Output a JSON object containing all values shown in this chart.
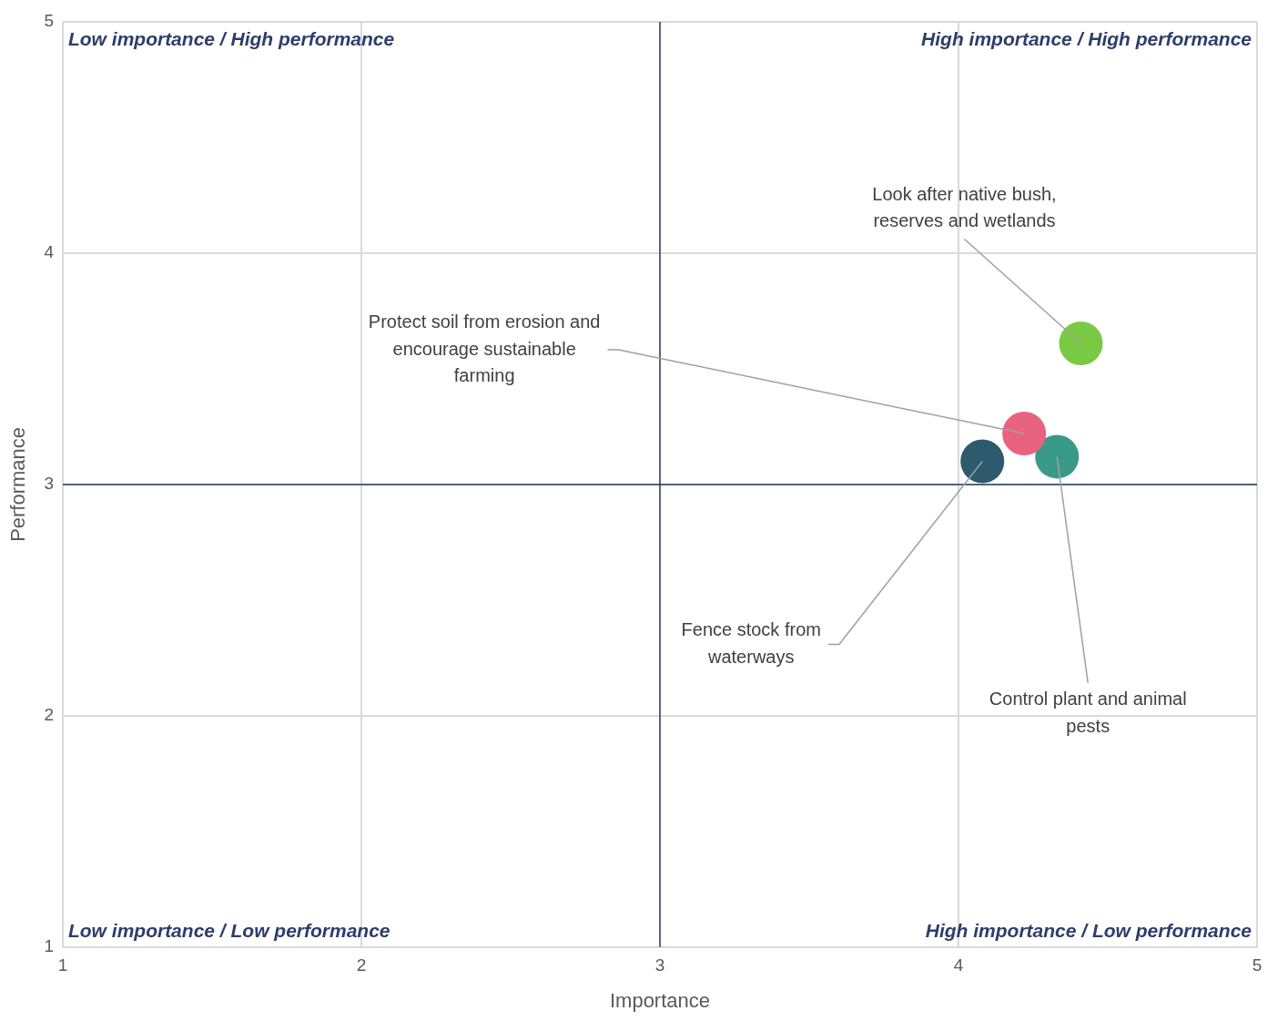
{
  "chart_data": {
    "type": "scatter",
    "xlabel": "Importance",
    "ylabel": "Performance",
    "xlim": [
      1,
      5
    ],
    "xticks": [
      1,
      2,
      3,
      4,
      5
    ],
    "ylim": [
      1,
      5
    ],
    "yticks": [
      1,
      2,
      3,
      4,
      5
    ],
    "grid": true,
    "legend": false,
    "marker": "circle",
    "series": [
      {
        "name": "Fence stock from waterways",
        "color": "#2e5a6e",
        "x": [
          4.08
        ],
        "values": [
          3.1
        ]
      },
      {
        "name": "Protect soil from erosion and encourage sustainable farming",
        "color": "#e8637f",
        "x": [
          4.22
        ],
        "values": [
          3.22
        ]
      },
      {
        "name": "Control plant and animal pests",
        "color": "#3a9a8a",
        "x": [
          4.33
        ],
        "values": [
          3.12
        ]
      },
      {
        "name": "Look after native bush, reserves and wetlands",
        "color": "#7ac943",
        "x": [
          4.41
        ],
        "values": [
          3.61
        ]
      }
    ],
    "ref_lines": [
      {
        "axis": "x",
        "value": 3,
        "color": "#2e3d6b"
      },
      {
        "axis": "y",
        "value": 3,
        "color": "#1f3a5a"
      }
    ],
    "annotations": [
      "Low importance / High performance",
      "High importance / High performance",
      "Low importance / Low performance",
      "High importance / Low performance"
    ]
  }
}
